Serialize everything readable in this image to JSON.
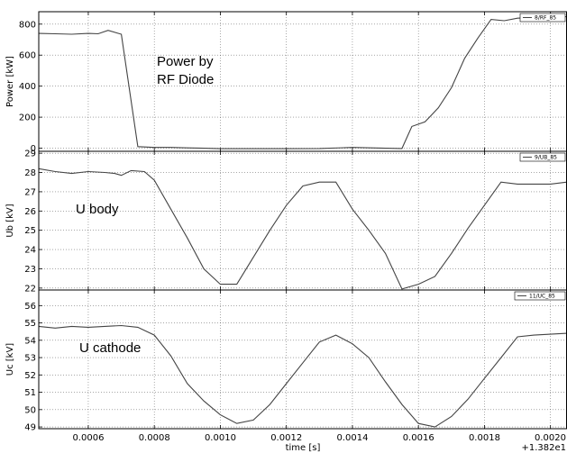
{
  "chart_data": [
    {
      "type": "line",
      "ylabel": "Power [kW]",
      "ylim": [
        -20,
        880
      ],
      "yticks": [
        0,
        200,
        400,
        600,
        800
      ],
      "legend": "8/RF_85",
      "annotation": [
        "Power by",
        "RF Diode"
      ],
      "grid": true,
      "series": [
        {
          "name": "8/RF_85",
          "x": [
            0.00045,
            0.0005,
            0.00055,
            0.0006,
            0.00063,
            0.00066,
            0.0007,
            0.00075,
            0.0008,
            0.00085,
            0.0009,
            0.00095,
            0.001,
            0.00105,
            0.0011,
            0.0012,
            0.0013,
            0.0014,
            0.0015,
            0.00155,
            0.00158,
            0.00162,
            0.00166,
            0.0017,
            0.00174,
            0.00178,
            0.00182,
            0.00186,
            0.0019,
            0.00195,
            0.002,
            0.00205
          ],
          "values": [
            740,
            738,
            735,
            740,
            738,
            760,
            735,
            10,
            5,
            5,
            2,
            0,
            -3,
            -3,
            -3,
            -3,
            -2,
            5,
            0,
            -2,
            140,
            170,
            260,
            390,
            580,
            710,
            830,
            822,
            838,
            843,
            843,
            848
          ]
        }
      ]
    },
    {
      "type": "line",
      "ylabel": "Ub [kV]",
      "ylim": [
        21.9,
        29.1
      ],
      "yticks": [
        22,
        23,
        24,
        25,
        26,
        27,
        28,
        29
      ],
      "legend": "9/UB_85",
      "annotation": [
        "U body"
      ],
      "grid": true,
      "series": [
        {
          "name": "9/UB_85",
          "x": [
            0.00045,
            0.0005,
            0.00055,
            0.0006,
            0.00065,
            0.00068,
            0.0007,
            0.00073,
            0.00077,
            0.0008,
            0.00085,
            0.0009,
            0.00095,
            0.001,
            0.00105,
            0.0011,
            0.00115,
            0.0012,
            0.00125,
            0.0013,
            0.00135,
            0.0014,
            0.00145,
            0.0015,
            0.00155,
            0.0016,
            0.00165,
            0.0017,
            0.00175,
            0.0018,
            0.00185,
            0.0019,
            0.00195,
            0.002,
            0.00205
          ],
          "values": [
            28.2,
            28.05,
            27.95,
            28.05,
            28.0,
            27.95,
            27.85,
            28.1,
            28.05,
            27.6,
            26.1,
            24.6,
            23.0,
            22.2,
            22.2,
            23.6,
            25.0,
            26.3,
            27.3,
            27.5,
            27.5,
            26.1,
            25.0,
            23.8,
            21.95,
            22.2,
            22.6,
            23.8,
            25.1,
            26.3,
            27.5,
            27.4,
            27.4,
            27.4,
            27.5
          ]
        }
      ]
    },
    {
      "type": "line",
      "ylabel": "Uc [kV]",
      "ylim": [
        48.9,
        56.9
      ],
      "yticks": [
        49,
        50,
        51,
        52,
        53,
        54,
        55,
        56
      ],
      "legend": "11/UC_85",
      "annotation": [
        "U cathode"
      ],
      "grid": true,
      "xlabel": "time [s]",
      "xlim": [
        0.00045,
        0.00205
      ],
      "xticks": [
        0.0006,
        0.0008,
        0.001,
        0.0012,
        0.0014,
        0.0016,
        0.0018,
        0.002
      ],
      "xticklabels": [
        "0.0006",
        "0.0008",
        "0.0010",
        "0.0012",
        "0.0014",
        "0.0016",
        "0.0018",
        "0.0020"
      ],
      "xoffset": "+1.382e1",
      "series": [
        {
          "name": "11/UC_85",
          "x": [
            0.00045,
            0.0005,
            0.00055,
            0.0006,
            0.00065,
            0.0007,
            0.00075,
            0.0008,
            0.00085,
            0.0009,
            0.00095,
            0.001,
            0.00105,
            0.0011,
            0.00115,
            0.0012,
            0.00125,
            0.0013,
            0.00135,
            0.0014,
            0.00145,
            0.0015,
            0.00155,
            0.0016,
            0.00165,
            0.0017,
            0.00175,
            0.0018,
            0.00185,
            0.0019,
            0.00195,
            0.002,
            0.00205
          ],
          "values": [
            54.8,
            54.7,
            54.8,
            54.75,
            54.8,
            54.85,
            54.75,
            54.3,
            53.1,
            51.5,
            50.5,
            49.7,
            49.2,
            49.4,
            50.3,
            51.5,
            52.7,
            53.9,
            54.3,
            53.8,
            53.0,
            51.6,
            50.3,
            49.2,
            49.0,
            49.6,
            50.6,
            51.8,
            53.0,
            54.2,
            54.3,
            54.35,
            54.4
          ]
        }
      ]
    }
  ]
}
